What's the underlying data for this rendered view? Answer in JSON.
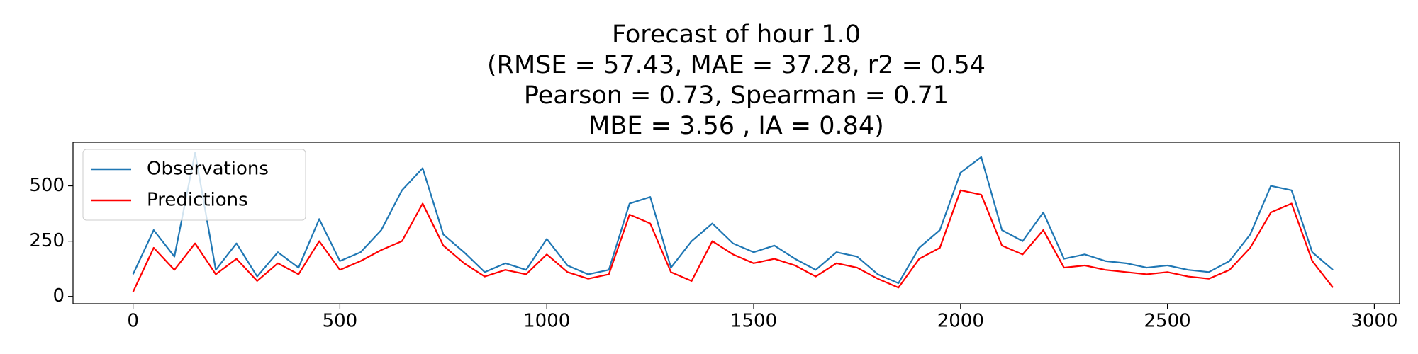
{
  "chart_data": {
    "type": "line",
    "title": [
      "Forecast of hour 1.0",
      "(RMSE = 57.43, MAE = 37.28, r2 = 0.54",
      "Pearson = 0.73, Spearman = 0.71",
      "MBE = 3.56 , IA = 0.84)"
    ],
    "x": [
      0,
      50,
      100,
      150,
      200,
      250,
      300,
      350,
      400,
      450,
      500,
      550,
      600,
      650,
      700,
      750,
      800,
      850,
      900,
      950,
      1000,
      1050,
      1100,
      1150,
      1200,
      1250,
      1300,
      1350,
      1400,
      1450,
      1500,
      1550,
      1600,
      1650,
      1700,
      1750,
      1800,
      1850,
      1900,
      1950,
      2000,
      2050,
      2100,
      2150,
      2200,
      2250,
      2300,
      2350,
      2400,
      2450,
      2500,
      2550,
      2600,
      2650,
      2700,
      2750,
      2800,
      2850,
      2900
    ],
    "series": [
      {
        "name": "Observations",
        "color": "#1f77b4",
        "values": [
          100,
          300,
          180,
          650,
          120,
          240,
          90,
          200,
          130,
          350,
          160,
          200,
          300,
          480,
          580,
          280,
          200,
          110,
          150,
          120,
          260,
          140,
          100,
          120,
          420,
          450,
          130,
          250,
          330,
          240,
          200,
          230,
          170,
          120,
          200,
          180,
          100,
          60,
          220,
          300,
          560,
          630,
          300,
          250,
          380,
          170,
          190,
          160,
          150,
          130,
          140,
          120,
          110,
          160,
          280,
          500,
          480,
          200,
          120
        ]
      },
      {
        "name": "Predictions",
        "color": "#ff0000",
        "values": [
          20,
          220,
          120,
          240,
          100,
          170,
          70,
          150,
          100,
          250,
          120,
          160,
          210,
          250,
          420,
          230,
          150,
          90,
          120,
          100,
          190,
          110,
          80,
          100,
          370,
          330,
          110,
          70,
          250,
          190,
          150,
          170,
          140,
          90,
          150,
          130,
          80,
          40,
          170,
          220,
          480,
          460,
          230,
          190,
          300,
          130,
          140,
          120,
          110,
          100,
          110,
          90,
          80,
          120,
          220,
          380,
          420,
          160,
          40
        ]
      }
    ],
    "xlim": [
      -145,
      3061
    ],
    "ylim": [
      -33,
      697
    ],
    "xticks": [
      0,
      500,
      1000,
      1500,
      2000,
      2500,
      3000
    ],
    "yticks": [
      0,
      250,
      500
    ],
    "legend": "upper left"
  }
}
